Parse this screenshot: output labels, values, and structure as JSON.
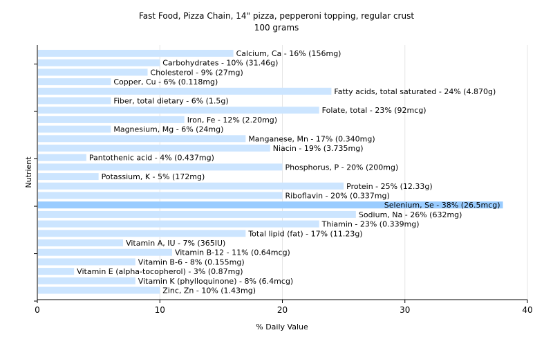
{
  "chart_data": {
    "type": "bar",
    "orientation": "horizontal",
    "title": "Fast Food, Pizza Chain, 14\" pizza, pepperoni topping, regular crust",
    "subtitle": "100 grams",
    "xlabel": "% Daily Value",
    "ylabel": "Nutrient",
    "xlim": [
      0,
      40
    ],
    "xticks": [
      "0",
      "10",
      "20",
      "30",
      "40"
    ],
    "grid": true,
    "bar_color": "#cce5ff",
    "highlight_color": "#99ccff",
    "categories": [
      "Calcium, Ca",
      "Carbohydrates",
      "Cholesterol",
      "Copper, Cu",
      "Fatty acids, total saturated",
      "Fiber, total dietary",
      "Folate, total",
      "Iron, Fe",
      "Magnesium, Mg",
      "Manganese, Mn",
      "Niacin",
      "Pantothenic acid",
      "Phosphorus, P",
      "Potassium, K",
      "Protein",
      "Riboflavin",
      "Selenium, Se",
      "Sodium, Na",
      "Thiamin",
      "Total lipid (fat)",
      "Vitamin A, IU",
      "Vitamin B-12",
      "Vitamin B-6",
      "Vitamin E (alpha-tocopherol)",
      "Vitamin K (phylloquinone)",
      "Zinc, Zn"
    ],
    "values": [
      16,
      10,
      9,
      6,
      24,
      6,
      23,
      12,
      6,
      17,
      19,
      4,
      20,
      5,
      25,
      20,
      38,
      26,
      23,
      17,
      7,
      11,
      8,
      3,
      8,
      10
    ],
    "labels": [
      "Calcium, Ca - 16% (156mg)",
      "Carbohydrates - 10% (31.46g)",
      "Cholesterol - 9% (27mg)",
      "Copper, Cu - 6% (0.118mg)",
      "Fatty acids, total saturated - 24% (4.870g)",
      "Fiber, total dietary - 6% (1.5g)",
      "Folate, total - 23% (92mcg)",
      "Iron, Fe - 12% (2.20mg)",
      "Magnesium, Mg - 6% (24mg)",
      "Manganese, Mn - 17% (0.340mg)",
      "Niacin - 19% (3.735mg)",
      "Pantothenic acid - 4% (0.437mg)",
      "Phosphorus, P - 20% (200mg)",
      "Potassium, K - 5% (172mg)",
      "Protein - 25% (12.33g)",
      "Riboflavin - 20% (0.337mg)",
      "Selenium, Se - 38% (26.5mcg)",
      "Sodium, Na - 26% (632mg)",
      "Thiamin - 23% (0.339mg)",
      "Total lipid (fat) - 17% (11.23g)",
      "Vitamin A, IU - 7% (365IU)",
      "Vitamin B-12 - 11% (0.64mcg)",
      "Vitamin B-6 - 8% (0.155mg)",
      "Vitamin E (alpha-tocopherol) - 3% (0.87mg)",
      "Vitamin K (phylloquinone) - 8% (6.4mcg)",
      "Zinc, Zn - 10% (1.43mg)"
    ]
  }
}
